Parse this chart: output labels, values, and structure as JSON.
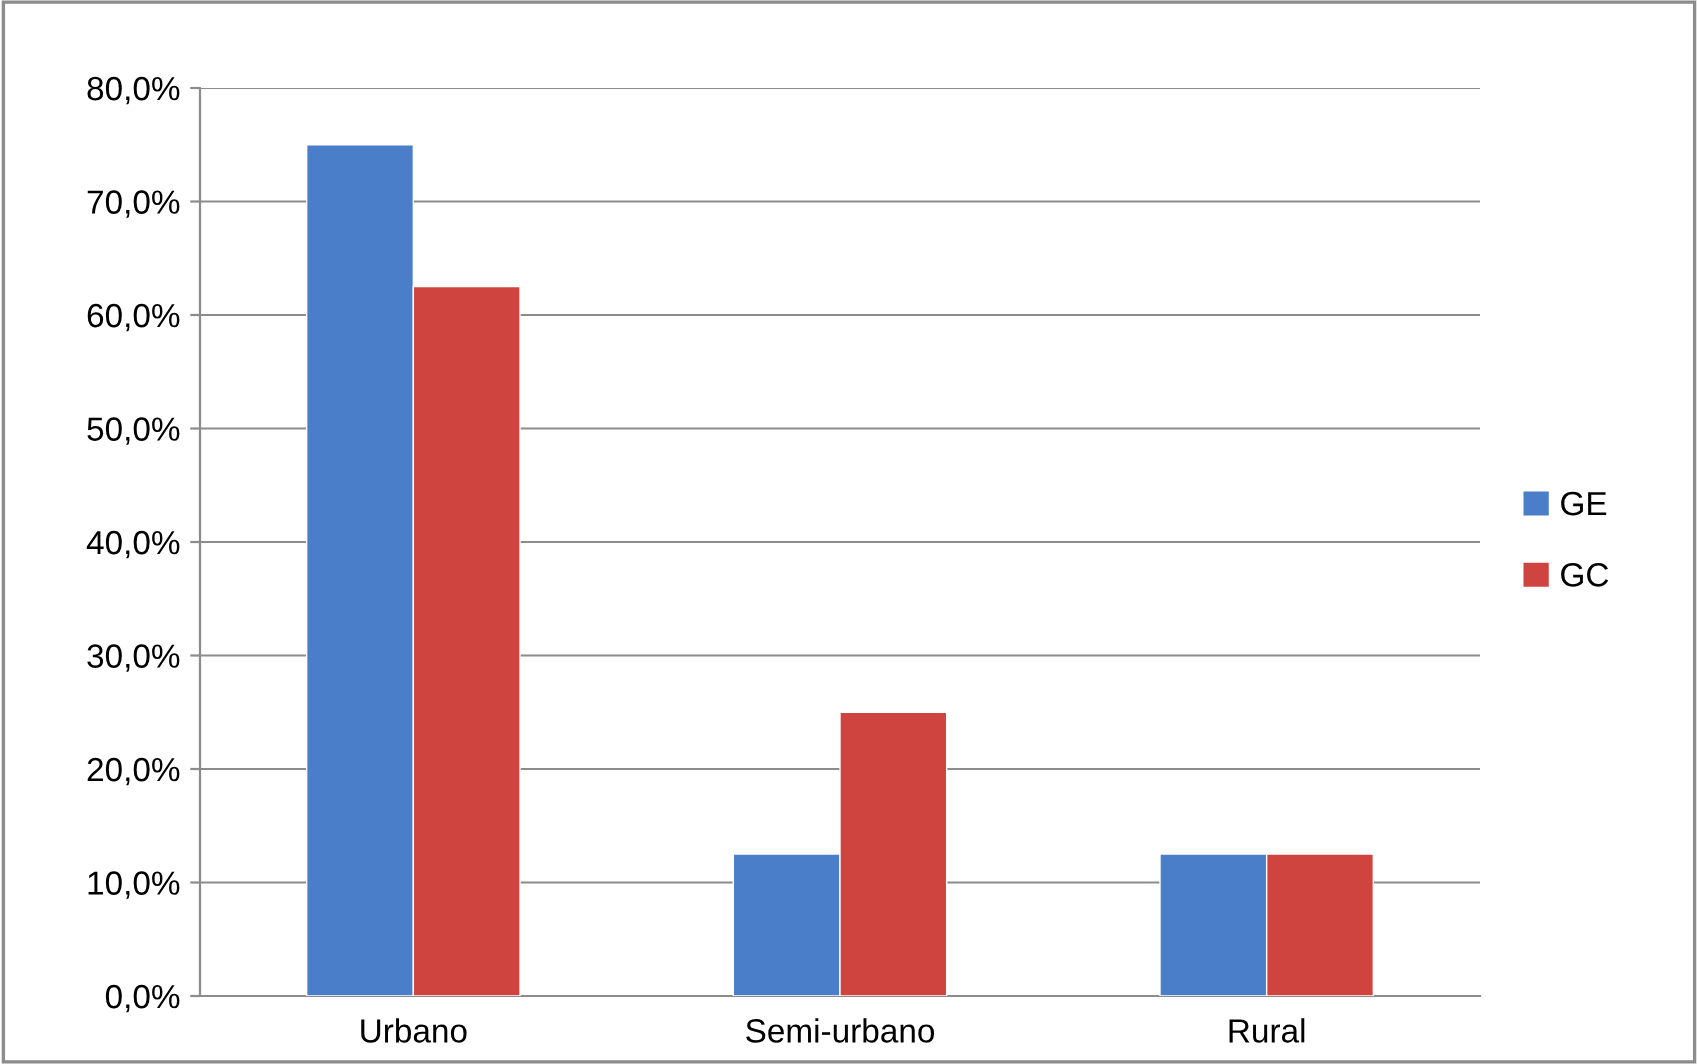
{
  "chart_data": {
    "type": "bar",
    "categories": [
      "Urbano",
      "Semi-urbano",
      "Rural"
    ],
    "series": [
      {
        "name": "GE",
        "color": "#4a7ec8",
        "values": [
          75,
          12.5,
          12.5
        ]
      },
      {
        "name": "GC",
        "color": "#d04440",
        "values": [
          62.5,
          25,
          12.5
        ]
      }
    ],
    "ylim": [
      0,
      80
    ],
    "yticks": [
      {
        "value": 0,
        "label": "0,0%"
      },
      {
        "value": 10,
        "label": "10,0%"
      },
      {
        "value": 20,
        "label": "20,0%"
      },
      {
        "value": 30,
        "label": "30,0%"
      },
      {
        "value": 40,
        "label": "40,0%"
      },
      {
        "value": 50,
        "label": "50,0%"
      },
      {
        "value": 60,
        "label": "60,0%"
      },
      {
        "value": 70,
        "label": "70,0%"
      },
      {
        "value": 80,
        "label": "80,0%"
      }
    ],
    "grid": "y",
    "legend": "right"
  }
}
